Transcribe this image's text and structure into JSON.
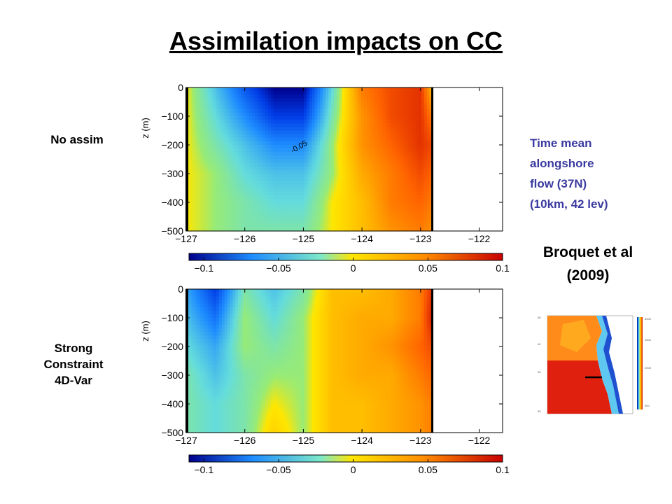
{
  "slide": {
    "title": "Assimilation impacts on CC",
    "label_top": "No assim",
    "label_bottom_lines": [
      "Strong",
      "Constraint",
      "4D-Var"
    ],
    "note_lines": [
      "Time mean",
      "alongshore",
      "flow (37N)",
      "(10km, 42 lev)"
    ],
    "citation_lines": [
      "Broquet et al",
      "(2009)"
    ]
  },
  "colors": {
    "neg_strong": "#00008c",
    "neg": "#1e8cff",
    "zero": "#ffe600",
    "pos": "#ff8c00",
    "pos_strong": "#c80000"
  },
  "chart_data": [
    {
      "type": "heatmap",
      "name": "No assim",
      "ylabel": "z (m)",
      "x_ticks": [
        "-127",
        "-126",
        "-125",
        "-124",
        "-123",
        "-122"
      ],
      "y_ticks": [
        "0",
        "-100",
        "-200",
        "-300",
        "-400",
        "-500"
      ],
      "xlim": [
        -127,
        -121.6
      ],
      "ylim": [
        -500,
        0
      ],
      "colorbar_ticks": [
        "-0.1",
        "-0.05",
        "0",
        "0.05",
        "0.1"
      ],
      "colorbar_range": [
        -0.11,
        0.1
      ],
      "contour_labels": [
        "-0.05"
      ],
      "x": [
        -127,
        -126.5,
        -126,
        -125.5,
        -125,
        -124.5,
        -124,
        -123.5,
        -123,
        -122.8
      ],
      "z": [
        0,
        -100,
        -200,
        -300,
        -400,
        -500
      ],
      "values": [
        [
          0.0,
          -0.04,
          -0.08,
          -0.11,
          -0.11,
          -0.03,
          0.05,
          0.07,
          0.08,
          0.02
        ],
        [
          0.0,
          -0.03,
          -0.06,
          -0.09,
          -0.09,
          -0.02,
          0.04,
          0.07,
          0.08,
          0.05
        ],
        [
          0.0,
          -0.02,
          -0.04,
          -0.06,
          -0.06,
          -0.01,
          0.04,
          0.06,
          0.08,
          0.07
        ],
        [
          0.0,
          -0.01,
          -0.03,
          -0.04,
          -0.04,
          -0.01,
          0.03,
          0.05,
          0.07,
          0.06
        ],
        [
          0.0,
          -0.01,
          -0.02,
          -0.03,
          -0.03,
          0.0,
          0.02,
          0.05,
          0.06,
          0.05
        ],
        [
          0.0,
          -0.01,
          -0.02,
          -0.02,
          -0.02,
          0.0,
          0.02,
          0.04,
          0.05,
          0.04
        ]
      ]
    },
    {
      "type": "heatmap",
      "name": "Strong Constraint 4D-Var",
      "ylabel": "z (m)",
      "x_ticks": [
        "-127",
        "-126",
        "-125",
        "-124",
        "-123",
        "-122"
      ],
      "y_ticks": [
        "0",
        "-100",
        "-200",
        "-300",
        "-400",
        "-500"
      ],
      "xlim": [
        -127,
        -121.6
      ],
      "ylim": [
        -500,
        0
      ],
      "colorbar_ticks": [
        "-0.1",
        "-0.05",
        "0",
        "0.05",
        "0.1"
      ],
      "colorbar_range": [
        -0.11,
        0.1
      ],
      "contour_labels": [],
      "x": [
        -127,
        -126.5,
        -126,
        -125.5,
        -125,
        -124.5,
        -124,
        -123.5,
        -123,
        -122.8
      ],
      "z": [
        0,
        -100,
        -200,
        -300,
        -400,
        -500
      ],
      "values": [
        [
          -0.05,
          -0.09,
          -0.02,
          -0.04,
          -0.02,
          0.02,
          0.02,
          0.03,
          0.05,
          0.08
        ],
        [
          -0.04,
          -0.07,
          -0.01,
          -0.03,
          -0.01,
          0.02,
          0.03,
          0.03,
          0.05,
          0.09
        ],
        [
          -0.03,
          -0.05,
          -0.01,
          -0.02,
          -0.01,
          0.02,
          0.03,
          0.04,
          0.06,
          0.07
        ],
        [
          -0.02,
          -0.04,
          -0.02,
          -0.01,
          -0.01,
          0.02,
          0.03,
          0.03,
          0.05,
          0.06
        ],
        [
          -0.02,
          -0.03,
          -0.02,
          0.0,
          -0.01,
          0.02,
          0.02,
          0.03,
          0.04,
          0.05
        ],
        [
          -0.02,
          -0.03,
          -0.02,
          0.01,
          -0.01,
          0.02,
          0.02,
          0.03,
          0.04,
          0.05
        ]
      ]
    }
  ]
}
